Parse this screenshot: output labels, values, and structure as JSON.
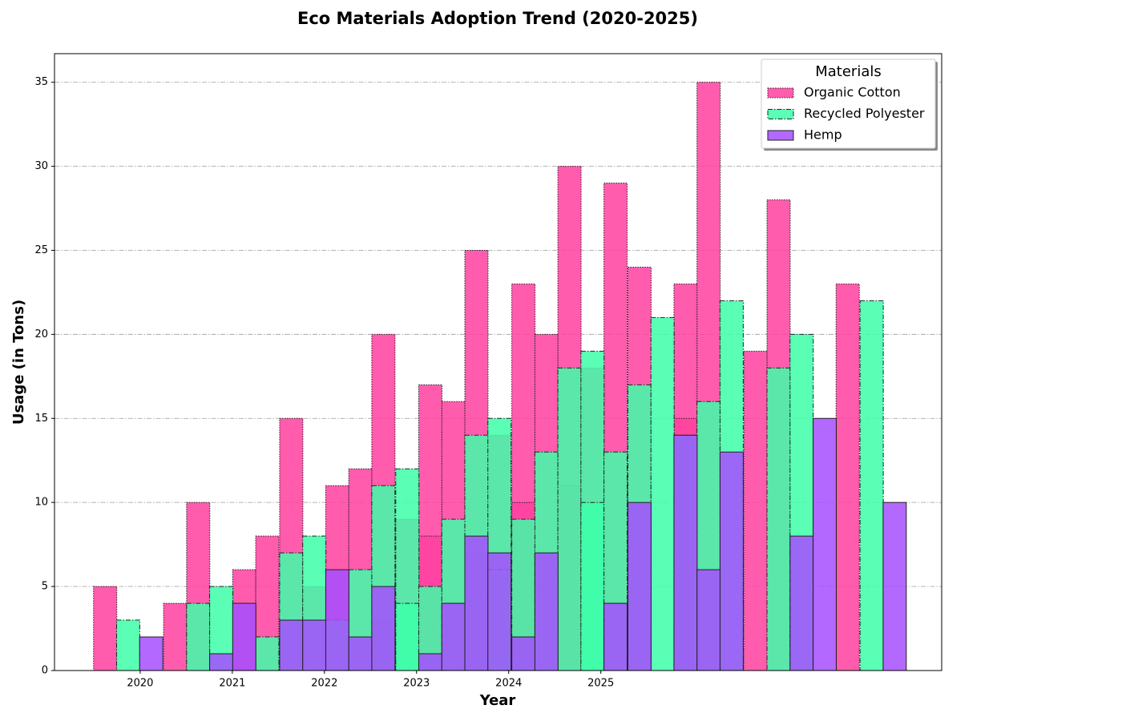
{
  "chart_data": {
    "type": "bar",
    "title": "Eco Materials Adoption Trend (2020-2025)",
    "xlabel": "Year",
    "ylabel": "Usage (in Tons)",
    "legend_title": "Materials",
    "legend": "upper right",
    "grid": true,
    "xlim": [
      2019.07,
      2028.7
    ],
    "xticks": [
      2020,
      2021,
      2022,
      2023,
      2024,
      2025
    ],
    "ylim": [
      0,
      36.7
    ],
    "yticks": [
      0,
      5,
      10,
      15,
      20,
      25,
      30,
      35
    ],
    "series": [
      {
        "name": "Organic Cotton",
        "color": "#ff3fa0",
        "edge": "dotted",
        "x": [
          2019.62,
          2020.38,
          2020.63,
          2021.13,
          2021.38,
          2021.64,
          2021.89,
          2022.14,
          2022.39,
          2022.64,
          2022.64,
          2022.9,
          2023.15,
          2023.15,
          2023.4,
          2023.65,
          2023.65,
          2023.9,
          2024.16,
          2024.16,
          2024.41,
          2024.66,
          2024.66,
          2024.91,
          2025.16,
          2025.42,
          2025.92,
          2025.92,
          2026.17,
          2026.68,
          2026.93,
          2027.68
        ],
        "values": [
          5,
          4,
          10,
          6,
          8,
          15,
          5,
          11,
          12,
          20,
          3,
          9,
          17,
          8,
          16,
          25,
          7,
          14,
          23,
          10,
          20,
          30,
          11,
          18,
          29,
          24,
          23,
          15,
          35,
          19,
          28,
          23
        ]
      },
      {
        "name": "Recycled Polyester",
        "color": "#3dffa8",
        "edge": "dashdot",
        "x": [
          2019.87,
          2020.63,
          2020.88,
          2021.38,
          2021.64,
          2021.89,
          2022.14,
          2022.39,
          2022.64,
          2022.9,
          2022.9,
          2023.15,
          2023.4,
          2023.65,
          2023.9,
          2023.9,
          2024.16,
          2024.41,
          2024.66,
          2024.91,
          2024.91,
          2025.16,
          2025.42,
          2025.67,
          2025.92,
          2026.17,
          2026.42,
          2026.93,
          2027.18,
          2027.94
        ],
        "values": [
          3,
          4,
          5,
          2,
          7,
          8,
          3,
          6,
          11,
          12,
          4,
          5,
          9,
          14,
          15,
          6,
          9,
          13,
          18,
          19,
          10,
          13,
          17,
          21,
          14,
          16,
          22,
          18,
          20,
          22
        ]
      },
      {
        "name": "Hemp",
        "color": "#a64dff",
        "edge": "solid",
        "x": [
          2020.12,
          2020.88,
          2021.13,
          2021.64,
          2021.89,
          2022.14,
          2022.39,
          2022.64,
          2023.15,
          2023.4,
          2023.65,
          2023.9,
          2024.16,
          2024.41,
          2025.16,
          2025.42,
          2025.92,
          2026.17,
          2026.42,
          2027.18,
          2027.43,
          2028.19
        ],
        "values": [
          2,
          1,
          4,
          3,
          3,
          6,
          2,
          5,
          1,
          4,
          8,
          7,
          2,
          7,
          4,
          10,
          14,
          6,
          13,
          8,
          15,
          10
        ]
      }
    ]
  }
}
